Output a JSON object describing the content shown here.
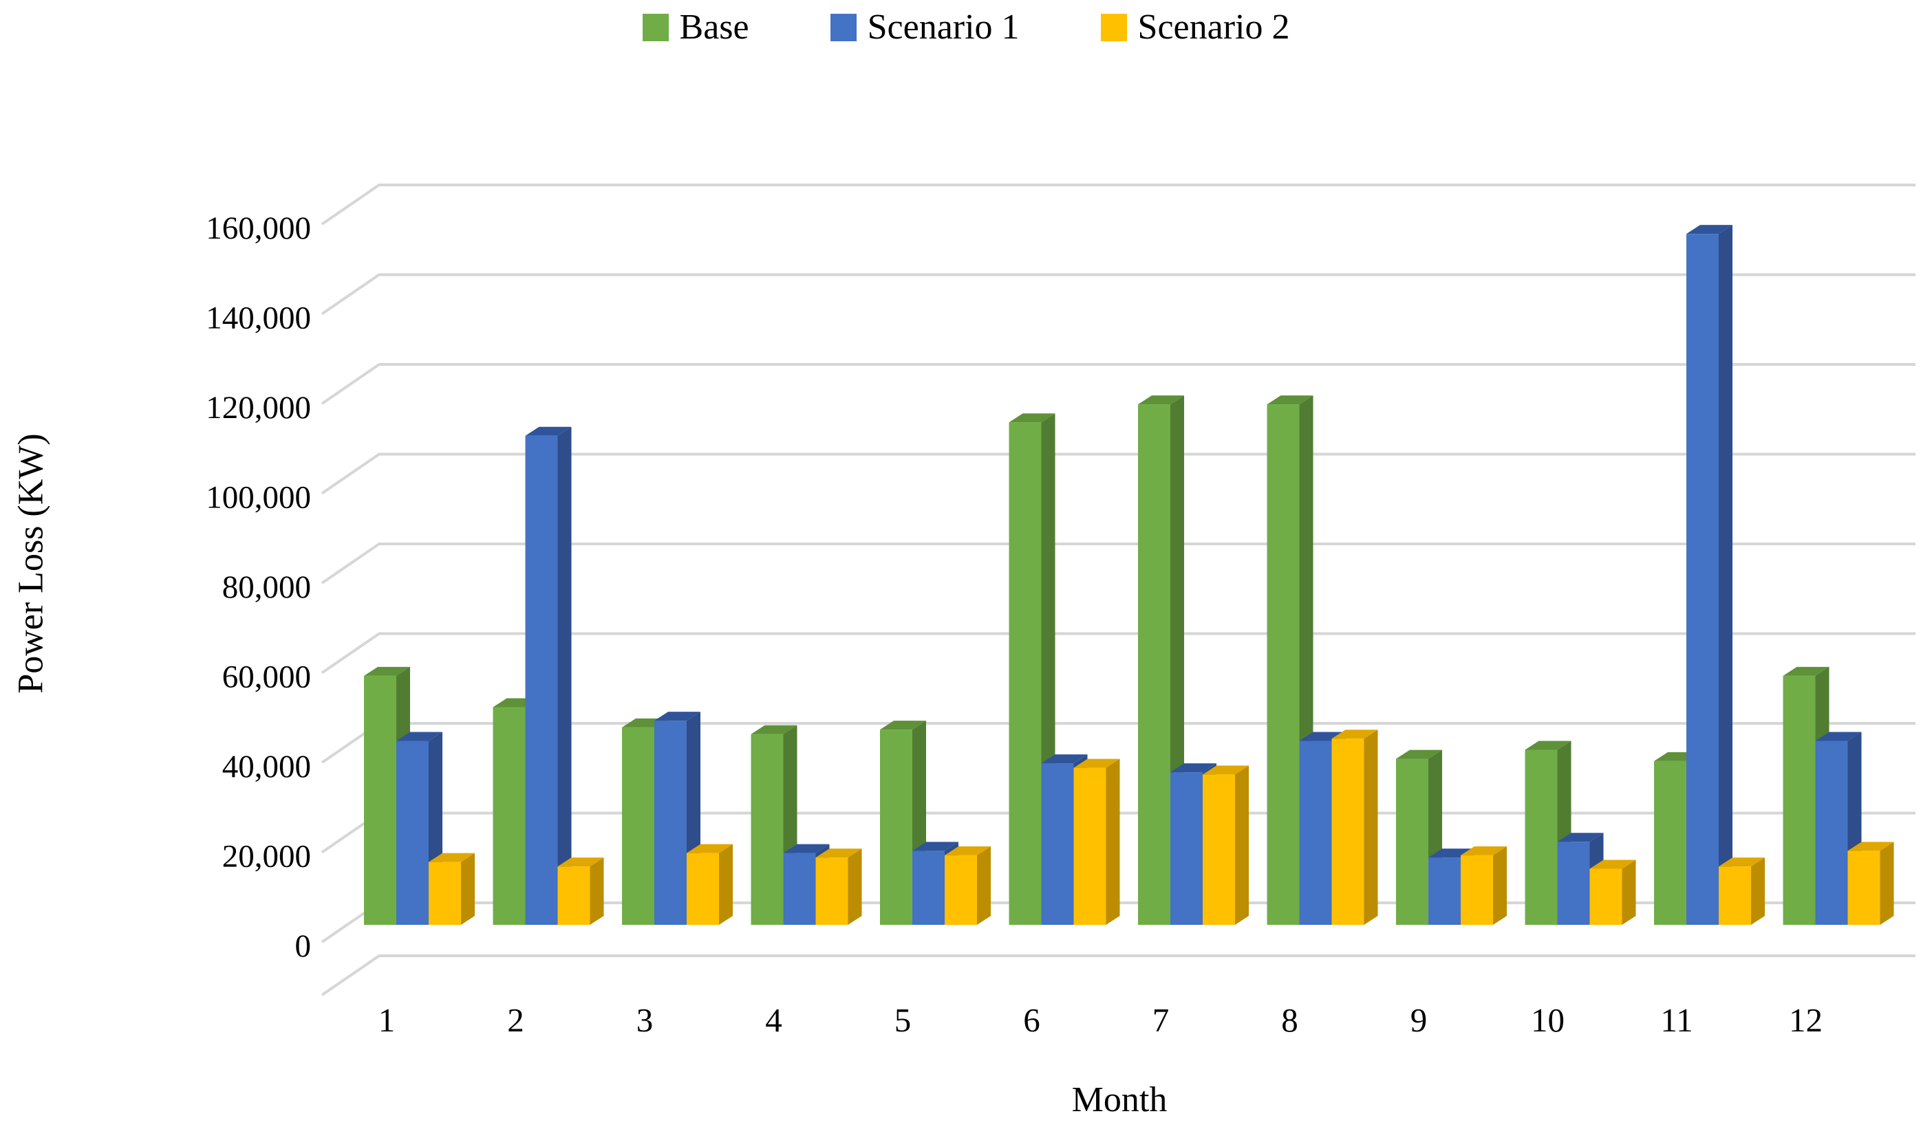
{
  "legend": {
    "items": [
      {
        "label": "Base",
        "color": "#70AD47"
      },
      {
        "label": "Scenario 1",
        "color": "#4472C4"
      },
      {
        "label": "Scenario 2",
        "color": "#FFC000"
      }
    ]
  },
  "axes": {
    "y_title": "Power Loss (KW)",
    "x_title": "Month"
  },
  "chart_data": {
    "type": "bar",
    "style": "3d-clustered-column",
    "title": "",
    "xlabel": "Month",
    "ylabel": "Power Loss (KW)",
    "ylim": [
      0,
      160000
    ],
    "ytick_step": 20000,
    "ytick_labels": [
      "0",
      "20,000",
      "40,000",
      "60,000",
      "80,000",
      "100,000",
      "120,000",
      "140,000",
      "160,000"
    ],
    "grid": true,
    "legend_position": "top",
    "categories": [
      "1",
      "2",
      "3",
      "4",
      "5",
      "6",
      "7",
      "8",
      "9",
      "10",
      "11",
      "12"
    ],
    "series": [
      {
        "name": "Base",
        "color": "#70AD47",
        "top_color": "#5E9138",
        "side_color": "#507D32",
        "values": [
          55500,
          48500,
          44000,
          42500,
          43500,
          112000,
          116000,
          116000,
          37000,
          39000,
          36500,
          55500
        ]
      },
      {
        "name": "Scenario 1",
        "color": "#4472C4",
        "top_color": "#30549A",
        "side_color": "#2E4D8A",
        "values": [
          41000,
          109000,
          45500,
          16000,
          16500,
          36000,
          34000,
          41000,
          15000,
          18500,
          154000,
          41000
        ]
      },
      {
        "name": "Scenario 2",
        "color": "#FFC000",
        "top_color": "#DFA700",
        "side_color": "#BC8D00",
        "values": [
          14000,
          13000,
          16000,
          15000,
          15500,
          35000,
          33500,
          41500,
          15500,
          12500,
          13000,
          16500
        ]
      }
    ],
    "gridline_color": "#D6D6D6"
  }
}
